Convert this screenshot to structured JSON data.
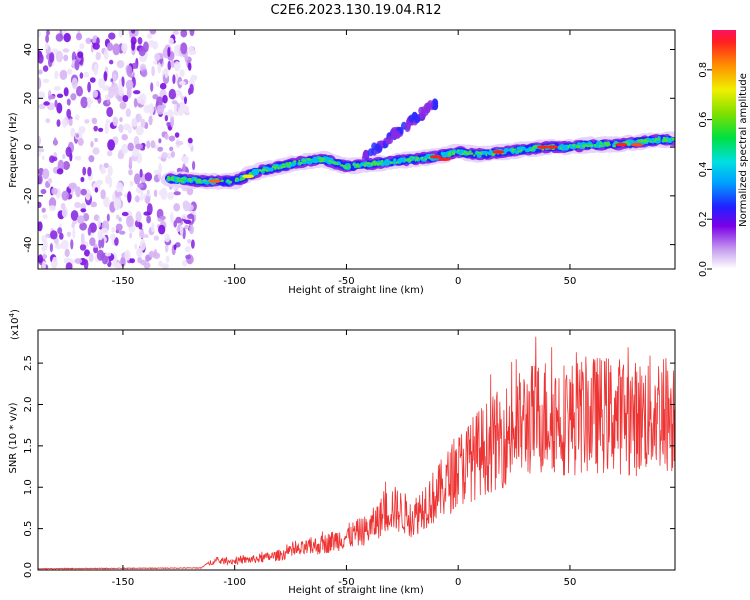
{
  "title": "C2E6.2023.130.19.04.R12",
  "chart_data": [
    {
      "type": "heatmap",
      "name": "spectrogram",
      "xlabel": "Height of straight line (km)",
      "ylabel": "Frequency (Hz)",
      "xlim": [
        -188,
        97
      ],
      "ylim": [
        -50,
        48
      ],
      "xticks": [
        -150,
        -100,
        -50,
        0,
        50
      ],
      "yticks": [
        -40,
        -20,
        0,
        20,
        40
      ],
      "noise_region_x": [
        -188,
        -118
      ],
      "signal_ridge": {
        "x": [
          -130,
          -115,
          -100,
          -90,
          -80,
          -70,
          -60,
          -50,
          -40,
          -30,
          -20,
          -10,
          0,
          10,
          20,
          30,
          40,
          50,
          60,
          70,
          80,
          90,
          97
        ],
        "freq": [
          -13,
          -14,
          -14,
          -10,
          -8,
          -6,
          -5,
          -8,
          -7,
          -6,
          -5,
          -4,
          -2,
          -3,
          -2,
          -1,
          0,
          0,
          1,
          1,
          2,
          3,
          3
        ]
      },
      "colorbar": {
        "label": "Normalized spectral amplitude",
        "ticks": [
          "0.0",
          "0.2",
          "0.4",
          "0.6",
          "0.8"
        ],
        "range": [
          0,
          0.96
        ]
      }
    },
    {
      "type": "line",
      "name": "snr",
      "xlabel": "Height of straight line (km)",
      "ylabel": "SNR (10 * v/v)",
      "y_multiplier_label": "(x10",
      "y_multiplier_exp": "4",
      "y_multiplier_close": ")",
      "xlim": [
        -188,
        97
      ],
      "ylim": [
        0,
        2.9
      ],
      "xticks": [
        -150,
        -100,
        -50,
        0,
        50
      ],
      "yticks": [
        0.0,
        0.5,
        1.0,
        1.5,
        2.0,
        2.5
      ],
      "ytick_labels": [
        "0.0",
        "0.5",
        "1.0",
        "1.5",
        "2.0",
        "2.5"
      ],
      "color": "#ee3333",
      "envelope": {
        "x": [
          -188,
          -115,
          -110,
          -100,
          -90,
          -80,
          -70,
          -60,
          -50,
          -40,
          -30,
          -20,
          -15,
          -10,
          0,
          10,
          20,
          30,
          40,
          50,
          60,
          70,
          80,
          90,
          97
        ],
        "y": [
          0.01,
          0.02,
          0.12,
          0.12,
          0.15,
          0.2,
          0.28,
          0.35,
          0.45,
          0.55,
          0.85,
          0.7,
          0.9,
          1.0,
          1.35,
          1.6,
          1.8,
          2.0,
          2.1,
          2.05,
          2.1,
          2.1,
          2.05,
          2.15,
          2.1
        ]
      }
    }
  ]
}
